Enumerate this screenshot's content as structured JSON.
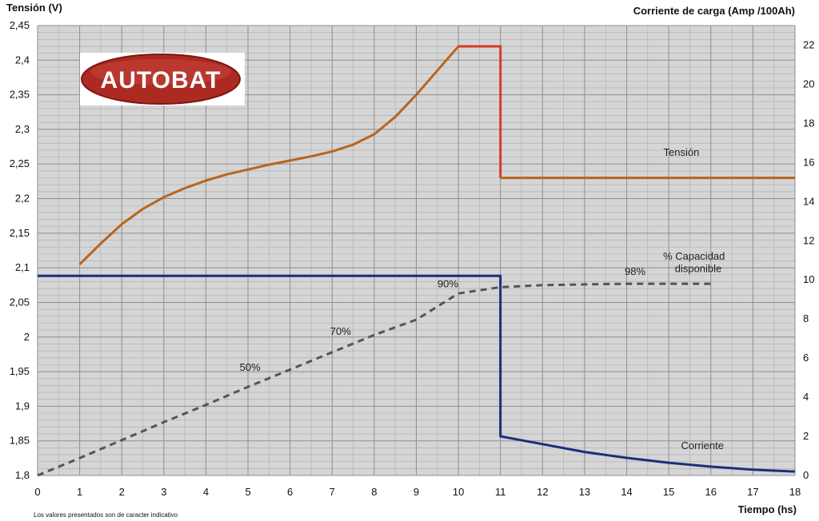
{
  "chart_data": {
    "type": "line",
    "logo": "AUTOBAT",
    "ylabel_left": "Tensión (V)",
    "ylabel_right": "Corriente de carga (Amp /100Ah)",
    "xlabel": "Tiempo (hs)",
    "footnote": "Los valores presentados son de caracter indicativo",
    "xlim": [
      0,
      18
    ],
    "ylim_left": [
      1.8,
      2.45
    ],
    "ylim_right": [
      0,
      23
    ],
    "x_ticks": [
      "0",
      "1",
      "2",
      "3",
      "4",
      "5",
      "6",
      "7",
      "8",
      "9",
      "10",
      "11",
      "12",
      "13",
      "14",
      "15",
      "16",
      "17",
      "18"
    ],
    "y_left_ticks": [
      "2,45",
      "2,4",
      "2,35",
      "2,3",
      "2,25",
      "2,2",
      "2,15",
      "2,1",
      "2,05",
      "2",
      "1,95",
      "1,9",
      "1,85",
      "1,8"
    ],
    "y_right_ticks": [
      "22",
      "20",
      "18",
      "16",
      "14",
      "12",
      "10",
      "8",
      "6",
      "4",
      "2",
      "0"
    ],
    "grid": true,
    "series": [
      {
        "name": "Tensión",
        "axis": "left",
        "color": "#b8651e",
        "points": [
          [
            1,
            2.105
          ],
          [
            1.5,
            2.135
          ],
          [
            2,
            2.163
          ],
          [
            2.5,
            2.185
          ],
          [
            3,
            2.202
          ],
          [
            3.5,
            2.215
          ],
          [
            4,
            2.226
          ],
          [
            4.5,
            2.235
          ],
          [
            5,
            2.242
          ],
          [
            5.5,
            2.249
          ],
          [
            6,
            2.255
          ],
          [
            6.5,
            2.261
          ],
          [
            7,
            2.268
          ],
          [
            7.5,
            2.278
          ],
          [
            8,
            2.293
          ],
          [
            8.5,
            2.318
          ],
          [
            9,
            2.35
          ],
          [
            9.5,
            2.385
          ],
          [
            10,
            2.42
          ]
        ]
      },
      {
        "name": "Tensión",
        "axis": "left",
        "color": "#d63a28",
        "points": [
          [
            10,
            2.42
          ],
          [
            11,
            2.42
          ],
          [
            11,
            2.23
          ]
        ]
      },
      {
        "name": "Tensión",
        "axis": "left",
        "color": "#b8651e",
        "points": [
          [
            11,
            2.23
          ],
          [
            18,
            2.23
          ]
        ]
      },
      {
        "name": "Corriente",
        "axis": "right",
        "color": "#1a2f78",
        "points": [
          [
            0,
            10.2
          ],
          [
            11,
            10.2
          ],
          [
            11,
            2
          ],
          [
            12,
            1.6
          ],
          [
            13,
            1.2
          ],
          [
            14,
            0.9
          ],
          [
            15,
            0.65
          ],
          [
            16,
            0.45
          ],
          [
            17,
            0.3
          ],
          [
            18,
            0.2
          ]
        ]
      },
      {
        "name": "% Capacidad disponible",
        "axis": "left",
        "color": "#555555",
        "dashed": true,
        "points": [
          [
            0,
            1.8
          ],
          [
            1,
            1.825
          ],
          [
            2,
            1.851
          ],
          [
            3,
            1.877
          ],
          [
            4,
            1.902
          ],
          [
            5,
            1.928
          ],
          [
            6,
            1.953
          ],
          [
            7,
            1.978
          ],
          [
            8,
            2.003
          ],
          [
            9,
            2.025
          ],
          [
            10,
            2.063
          ],
          [
            11,
            2.072
          ],
          [
            12,
            2.075
          ],
          [
            13,
            2.076
          ],
          [
            14,
            2.077
          ],
          [
            15,
            2.077
          ],
          [
            16,
            2.077
          ]
        ]
      }
    ],
    "annotations": [
      {
        "text": "Tensión",
        "x": 15.3,
        "y": 2.262
      },
      {
        "text": "% Capacidad",
        "x": 15.6,
        "y": 2.112
      },
      {
        "text": "disponible",
        "x": 15.7,
        "y": 2.094
      },
      {
        "text": "98%",
        "x": 14.2,
        "y": 2.09
      },
      {
        "text": "90%",
        "x": 9.75,
        "y": 2.072
      },
      {
        "text": "70%",
        "x": 7.2,
        "y": 2.003
      },
      {
        "text": "50%",
        "x": 5.05,
        "y": 1.951
      },
      {
        "text": "Corriente",
        "x": 15.8,
        "y": 1.838
      }
    ]
  }
}
